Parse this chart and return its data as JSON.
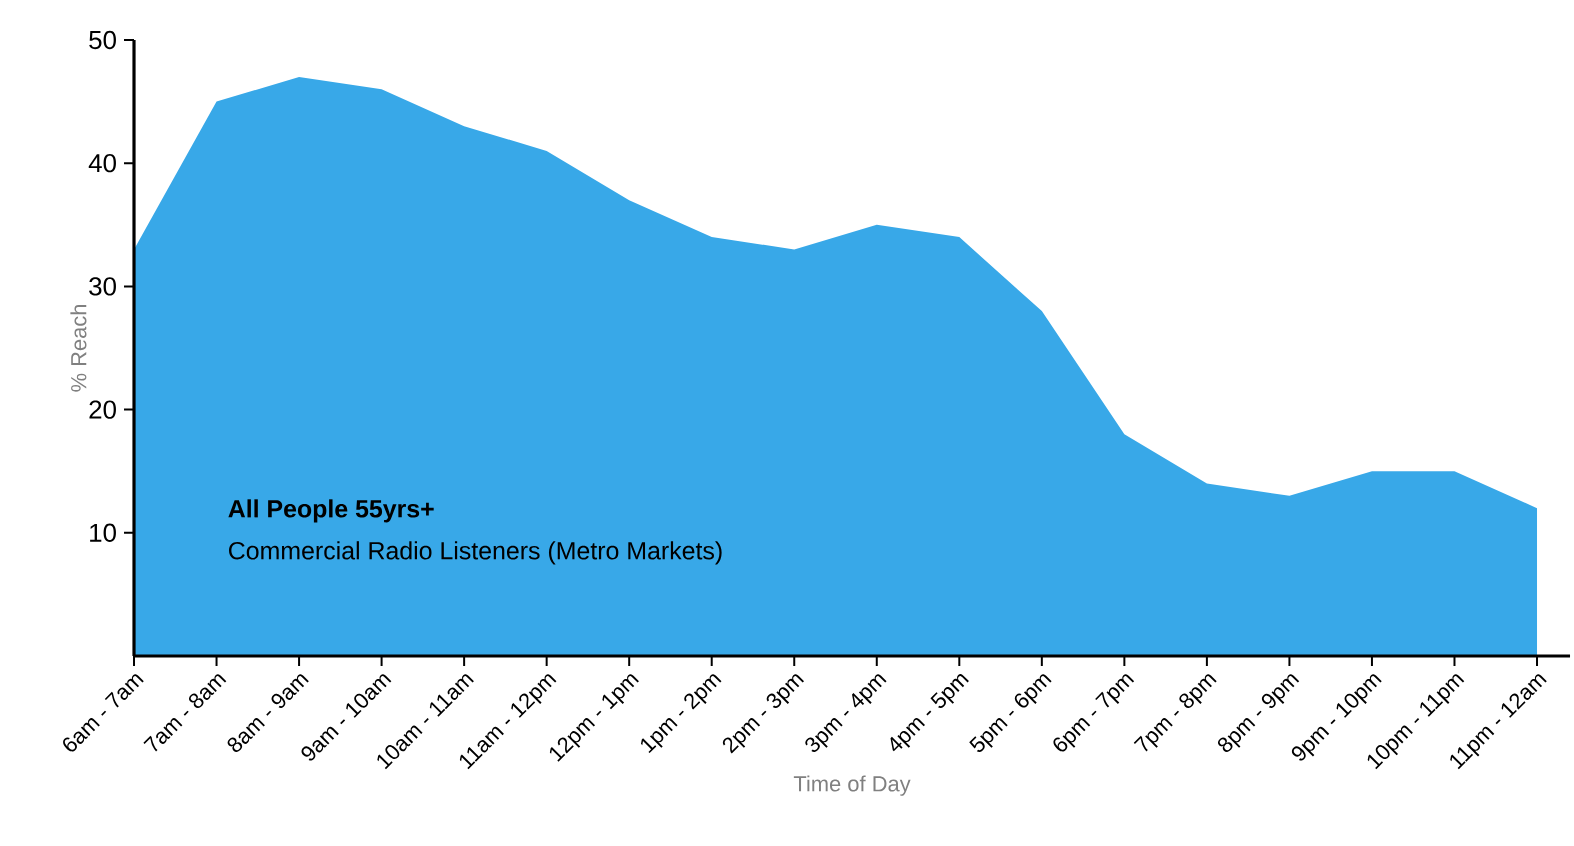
{
  "chart_data": {
    "type": "area",
    "xlabel": "Time of Day",
    "ylabel": "% Reach",
    "categories": [
      "6am - 7am",
      "7am - 8am",
      "8am - 9am",
      "9am - 10am",
      "10am - 11am",
      "11am - 12pm",
      "12pm - 1pm",
      "1pm - 2pm",
      "2pm - 3pm",
      "3pm - 4pm",
      "4pm - 5pm",
      "5pm - 6pm",
      "6pm - 7pm",
      "7pm - 8pm",
      "8pm - 9pm",
      "9pm - 10pm",
      "10pm - 11pm",
      "11pm - 12am"
    ],
    "values": [
      33,
      45,
      47,
      46,
      43,
      41,
      37,
      34,
      33,
      35,
      34,
      28,
      18,
      14,
      13,
      15,
      15,
      12
    ],
    "color": "#38a8e8",
    "ylim": [
      0,
      50
    ],
    "yticks": [
      10,
      20,
      30,
      40,
      50
    ],
    "grid": false,
    "annotations": [
      "All People 55yrs+",
      "Commercial Radio Listeners (Metro Markets)"
    ]
  }
}
